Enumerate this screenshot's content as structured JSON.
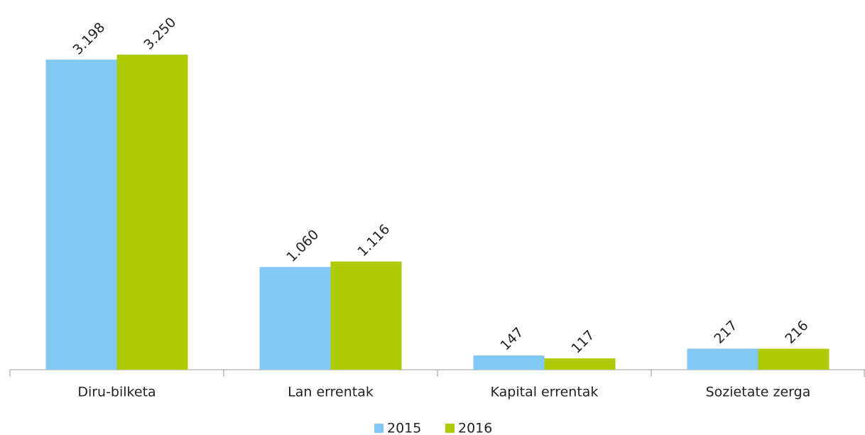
{
  "chart_data": {
    "type": "bar",
    "categories": [
      "Diru-bilketa",
      "Lan errentak",
      "Kapital errentak",
      "Sozietate zerga"
    ],
    "series": [
      {
        "name": "2015",
        "color": "#82c8f5",
        "values": [
          3198,
          1060,
          147,
          217
        ],
        "value_labels": [
          "3.198",
          "1.060",
          "147",
          "217"
        ]
      },
      {
        "name": "2016",
        "color": "#aecb05",
        "values": [
          3250,
          1116,
          117,
          216
        ],
        "value_labels": [
          "3.250",
          "1.116",
          "117",
          "216"
        ]
      }
    ],
    "legend": "bottom"
  }
}
